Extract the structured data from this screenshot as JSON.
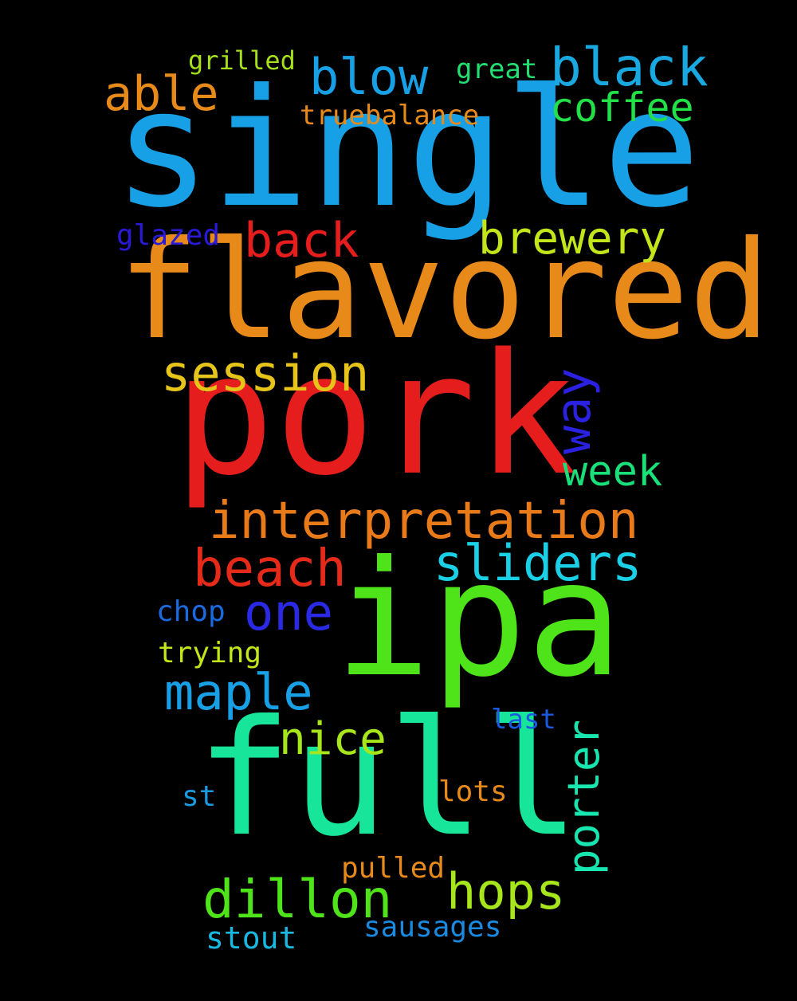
{
  "words": {
    "single": {
      "text": "single",
      "color": "#18a0e6"
    },
    "flavored": {
      "text": "flavored",
      "color": "#e88a19"
    },
    "pork": {
      "text": "pork",
      "color": "#e61d1d"
    },
    "ipa": {
      "text": "ipa",
      "color": "#4fe31a"
    },
    "full": {
      "text": "full",
      "color": "#17e69a"
    },
    "blow": {
      "text": "blow",
      "color": "#18a0e6"
    },
    "black": {
      "text": "black",
      "color": "#1aa8e0"
    },
    "able": {
      "text": "able",
      "color": "#e88a19"
    },
    "grilled": {
      "text": "grilled",
      "color": "#a6e01a"
    },
    "great": {
      "text": "great",
      "color": "#22e070"
    },
    "coffee": {
      "text": "coffee",
      "color": "#22e048"
    },
    "truebalance": {
      "text": "truebalance",
      "color": "#e88a19"
    },
    "glazed": {
      "text": "glazed",
      "color": "#2a1ad6"
    },
    "back": {
      "text": "back",
      "color": "#e61d1d"
    },
    "brewery": {
      "text": "brewery",
      "color": "#c2e61a"
    },
    "session": {
      "text": "session",
      "color": "#e6c41a"
    },
    "way": {
      "text": "way",
      "color": "#2a22e0"
    },
    "week": {
      "text": "week",
      "color": "#1ae07a"
    },
    "interpretation": {
      "text": "interpretation",
      "color": "#e87a1a"
    },
    "beach": {
      "text": "beach",
      "color": "#e62a1a"
    },
    "sliders": {
      "text": "sliders",
      "color": "#1ad0e6"
    },
    "chop": {
      "text": "chop",
      "color": "#1a6ae0"
    },
    "one": {
      "text": "one",
      "color": "#2a2ae6"
    },
    "trying": {
      "text": "trying",
      "color": "#c2e61a"
    },
    "maple": {
      "text": "maple",
      "color": "#18a0e6"
    },
    "last": {
      "text": "last",
      "color": "#1a5ae0"
    },
    "nice": {
      "text": "nice",
      "color": "#a6e61a"
    },
    "porter": {
      "text": "porter",
      "color": "#17e6b0"
    },
    "lots": {
      "text": "lots",
      "color": "#e88a19"
    },
    "st": {
      "text": "st",
      "color": "#1a9ae0"
    },
    "pulled": {
      "text": "pulled",
      "color": "#e88a19"
    },
    "dillon": {
      "text": "dillon",
      "color": "#4fe31a"
    },
    "hops": {
      "text": "hops",
      "color": "#a6e61a"
    },
    "sausages": {
      "text": "sausages",
      "color": "#1a8ae0"
    },
    "stout": {
      "text": "stout",
      "color": "#1ab8e0"
    }
  }
}
